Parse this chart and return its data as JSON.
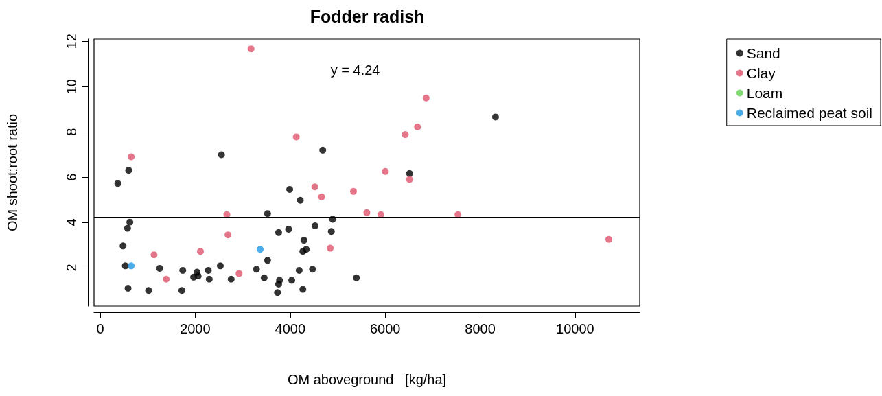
{
  "chart_data": {
    "type": "scatter",
    "title": "Fodder radish",
    "xlabel": "OM aboveground   [kg/ha]",
    "ylabel": "OM shoot:root ratio",
    "xlim": [
      -130,
      11360
    ],
    "ylim": [
      0.3,
      12.1
    ],
    "xticks": [
      0,
      2000,
      4000,
      6000,
      8000,
      10000
    ],
    "yticks": [
      2,
      4,
      6,
      8,
      10,
      12
    ],
    "grid": false,
    "legend": "top right",
    "marker": "circle",
    "ref_lines": [
      {
        "axis": "y",
        "value": 4.24,
        "color": "#000000"
      }
    ],
    "annotations": [
      "y = 4.24"
    ],
    "series": [
      {
        "name": "Sand",
        "color": "#000000",
        "x": [
          371,
          600,
          2553,
          4686,
          3990,
          4214,
          3524,
          624,
          576,
          481,
          529,
          586,
          1019,
          1253,
          1738,
          1719,
          1967,
          2038,
          2062,
          2276,
          2295,
          2529,
          2757,
          3290,
          3452,
          3524,
          3757,
          3967,
          3776,
          3757,
          3733,
          4033,
          4190,
          4267,
          4471,
          4290,
          4267,
          4338,
          4524,
          4867,
          4895,
          5395,
          8324,
          6514
        ],
        "values": [
          5.72,
          6.3,
          6.99,
          7.19,
          5.46,
          4.98,
          4.39,
          4.01,
          3.74,
          2.96,
          2.08,
          1.09,
          0.99,
          1.97,
          1.88,
          0.99,
          1.58,
          1.8,
          1.63,
          1.88,
          1.49,
          2.08,
          1.49,
          1.93,
          1.55,
          2.32,
          3.55,
          3.7,
          1.44,
          1.27,
          0.9,
          1.44,
          1.88,
          1.04,
          1.93,
          3.21,
          2.72,
          2.81,
          3.85,
          3.6,
          4.14,
          1.55,
          8.66,
          6.16
        ]
      },
      {
        "name": "Clay",
        "color": "#df536b",
        "x": [
          3176,
          652,
          4129,
          4519,
          4662,
          5333,
          5614,
          2667,
          2690,
          2110,
          1133,
          1390,
          2924,
          4843,
          6862,
          6681,
          6424,
          6004,
          6514,
          5910,
          7533,
          10710
        ],
        "values": [
          11.67,
          6.9,
          7.78,
          5.57,
          5.13,
          5.37,
          4.43,
          4.34,
          3.45,
          2.72,
          2.57,
          1.49,
          1.74,
          2.86,
          9.5,
          8.22,
          7.88,
          6.25,
          5.9,
          4.34,
          4.34,
          3.25
        ]
      },
      {
        "name": "Loam",
        "color": "#61d04f"
      },
      {
        "name": "Reclaimed peat soil",
        "color": "#2297e6",
        "x": [
          3367,
          652
        ],
        "values": [
          2.81,
          2.08
        ]
      }
    ]
  }
}
